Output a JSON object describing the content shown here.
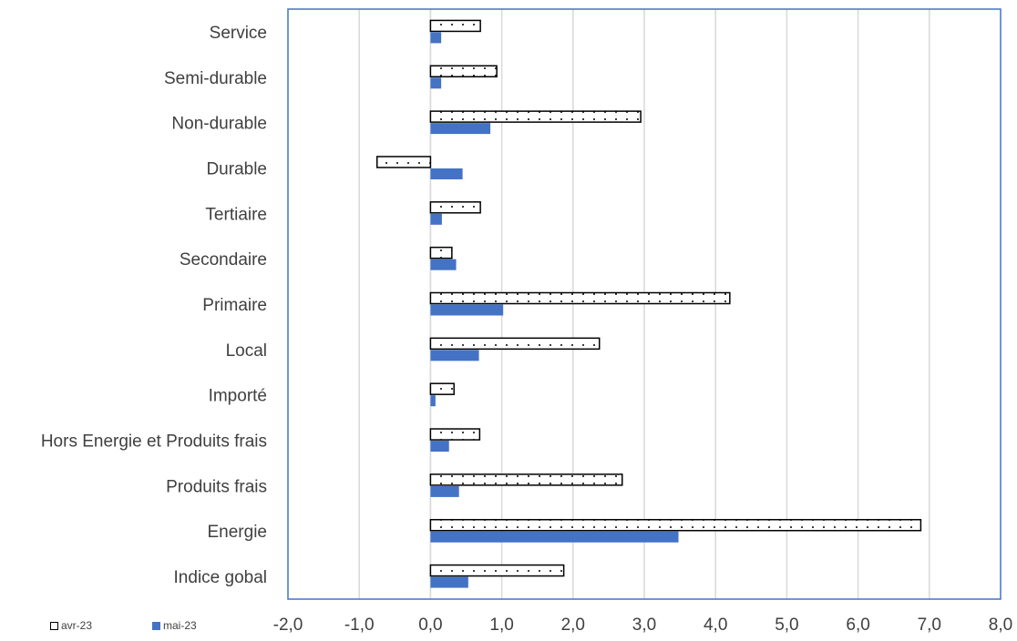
{
  "chart_data": {
    "type": "bar",
    "orientation": "horizontal",
    "title": "",
    "xlabel": "",
    "ylabel": "",
    "categories": [
      "Service",
      "Semi-durable",
      "Non-durable",
      "Durable",
      "Tertiaire",
      "Secondaire",
      "Primaire",
      "Local",
      "Importé",
      "Hors Energie et Produits frais",
      "Produits frais",
      "Energie",
      "Indice gobal"
    ],
    "series": [
      {
        "name": "avr-23",
        "style": "white fill, black outline, dotted pattern",
        "values": [
          0.7,
          0.93,
          2.95,
          -0.75,
          0.7,
          0.3,
          4.2,
          2.37,
          0.33,
          0.69,
          2.69,
          6.88,
          1.87
        ]
      },
      {
        "name": "mai-23",
        "style": "solid blue",
        "values": [
          0.15,
          0.15,
          0.84,
          0.45,
          0.16,
          0.36,
          1.02,
          0.68,
          0.07,
          0.26,
          0.4,
          3.48,
          0.53
        ]
      }
    ],
    "xlim": [
      -2.0,
      8.0
    ],
    "x_ticks": [
      "-2,0",
      "-1,0",
      "0,0",
      "1,0",
      "2,0",
      "3,0",
      "4,0",
      "5,0",
      "6,0",
      "7,0",
      "8,0"
    ],
    "grid": "vertical",
    "legend_position": "bottom-left",
    "colors": {
      "avr-23": "#ffffff",
      "mai-23": "#4472c4",
      "outline": "#000000",
      "frame": "#4472c4",
      "grid": "#d9d9d9",
      "text": "#404040"
    }
  },
  "legend": {
    "items": [
      "avr-23",
      "mai-23"
    ]
  }
}
